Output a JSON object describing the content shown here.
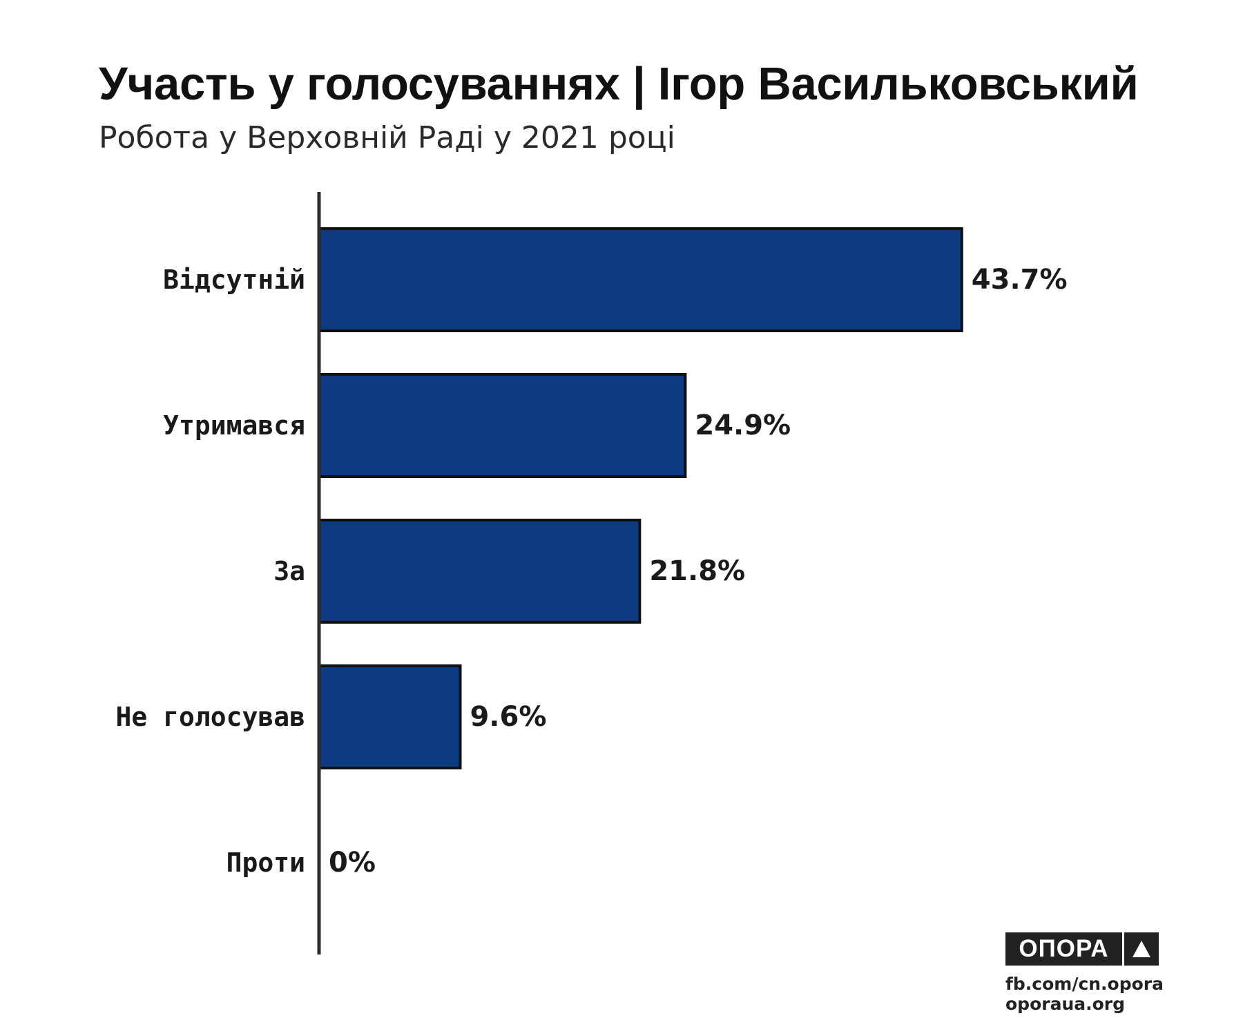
{
  "title": "Участь у голосуваннях | Ігор Васильковський",
  "subtitle": "Робота у Верховній Раді у 2021 році",
  "chart_data": {
    "type": "bar",
    "orientation": "horizontal",
    "categories": [
      "Відсутній",
      "Утримався",
      "За",
      "Не голосував",
      "Проти"
    ],
    "values": [
      43.7,
      24.9,
      21.8,
      9.6,
      0
    ],
    "value_labels": [
      "43.7%",
      "24.9%",
      "21.8%",
      "9.6%",
      "0%"
    ],
    "unit": "%",
    "xlim": [
      0,
      45
    ],
    "grid": false,
    "legend": "none",
    "colors": {
      "bar_fill": "#0c3b82",
      "bar_stroke": "#111111",
      "axis": "#2a2a2a",
      "text": "#1a1a1a"
    }
  },
  "footer": {
    "logo_text": "ОПОРА",
    "logo_icon": "triangle-icon",
    "links": [
      "fb.com/cn.opora",
      "oporaua.org"
    ]
  }
}
